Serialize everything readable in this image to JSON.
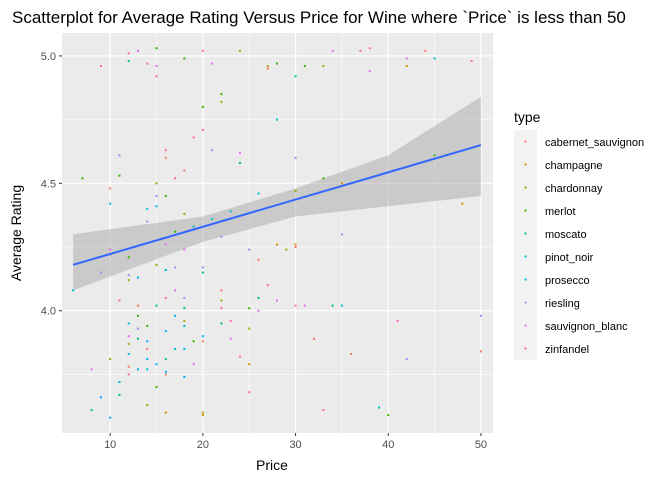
{
  "chart_data": {
    "type": "scatter",
    "title": "Scatterplot for Average Rating Versus Price for Wine where `Price` is less than 50",
    "xlabel": "Price",
    "ylabel": "Average Rating",
    "xlim": [
      4.8,
      51.3
    ],
    "ylim": [
      3.52,
      5.09
    ],
    "x_ticks": [
      10,
      20,
      30,
      40,
      50
    ],
    "y_ticks": [
      4.0,
      4.5,
      5.0
    ],
    "grid": true,
    "legend_title": "type",
    "legend_position": "right",
    "smooth": {
      "method": "linear",
      "start": {
        "x": 6,
        "y": 4.18
      },
      "end": {
        "x": 50,
        "y": 4.65
      },
      "band_lower": [
        [
          6,
          4.08
        ],
        [
          20,
          4.27
        ],
        [
          30,
          4.37
        ],
        [
          40,
          4.41
        ],
        [
          50,
          4.45
        ]
      ],
      "band_upper": [
        [
          6,
          4.3
        ],
        [
          20,
          4.37
        ],
        [
          30,
          4.48
        ],
        [
          40,
          4.61
        ],
        [
          50,
          4.84
        ]
      ]
    },
    "series": [
      {
        "name": "cabernet_sauvignon",
        "color": "#F8766D",
        "points": [
          [
            10,
            4.48
          ],
          [
            12,
            3.78
          ],
          [
            14,
            3.85
          ],
          [
            16,
            4.6
          ],
          [
            18,
            4.55
          ],
          [
            20,
            3.88
          ],
          [
            22,
            4.08
          ],
          [
            24,
            3.82
          ],
          [
            26,
            4.2
          ],
          [
            30,
            4.25
          ],
          [
            32,
            3.89
          ],
          [
            36,
            3.83
          ],
          [
            38,
            5.03
          ],
          [
            44,
            5.02
          ],
          [
            50,
            3.84
          ],
          [
            13,
            4.02
          ],
          [
            27,
            4.95
          ],
          [
            16,
            3.75
          ]
        ]
      },
      {
        "name": "champagne",
        "color": "#D89000",
        "points": [
          [
            25,
            3.79
          ],
          [
            28,
            4.26
          ],
          [
            30,
            4.26
          ],
          [
            35,
            4.5
          ],
          [
            42,
            4.96
          ],
          [
            48,
            4.42
          ],
          [
            20,
            3.59
          ],
          [
            16,
            3.6
          ]
        ]
      },
      {
        "name": "chardonnay",
        "color": "#A3A500",
        "points": [
          [
            10,
            3.81
          ],
          [
            12,
            4.12
          ],
          [
            14,
            3.63
          ],
          [
            15,
            4.5
          ],
          [
            18,
            3.96
          ],
          [
            20,
            3.6
          ],
          [
            22,
            4.04
          ],
          [
            25,
            3.93
          ],
          [
            27,
            4.96
          ],
          [
            29,
            4.24
          ],
          [
            30,
            4.47
          ],
          [
            33,
            4.96
          ],
          [
            18,
            4.38
          ],
          [
            24,
            5.02
          ],
          [
            15,
            4.18
          ],
          [
            12,
            3.87
          ],
          [
            22,
            4.82
          ]
        ]
      },
      {
        "name": "merlot",
        "color": "#39B600",
        "points": [
          [
            7,
            4.52
          ],
          [
            11,
            4.53
          ],
          [
            12,
            4.21
          ],
          [
            14,
            3.94
          ],
          [
            15,
            5.03
          ],
          [
            17,
            4.31
          ],
          [
            18,
            4.99
          ],
          [
            20,
            4.8
          ],
          [
            22,
            4.85
          ],
          [
            25,
            4.01
          ],
          [
            28,
            4.97
          ],
          [
            31,
            4.96
          ],
          [
            40,
            3.59
          ],
          [
            45,
            4.61
          ],
          [
            13,
            3.98
          ],
          [
            16,
            4.45
          ],
          [
            19,
            3.88
          ],
          [
            15,
            3.7
          ],
          [
            33,
            4.52
          ]
        ]
      },
      {
        "name": "moscato",
        "color": "#00BF7D",
        "points": [
          [
            8,
            3.61
          ],
          [
            11,
            3.67
          ],
          [
            13,
            3.89
          ],
          [
            15,
            4.02
          ],
          [
            16,
            3.81
          ],
          [
            18,
            4.01
          ],
          [
            20,
            4.15
          ],
          [
            22,
            3.95
          ],
          [
            24,
            4.58
          ],
          [
            26,
            4.05
          ],
          [
            30,
            4.92
          ],
          [
            34,
            4.02
          ],
          [
            16,
            4.16
          ],
          [
            12,
            4.98
          ]
        ]
      },
      {
        "name": "pinot_noir",
        "color": "#00BFC4",
        "points": [
          [
            6,
            4.08
          ],
          [
            10,
            4.42
          ],
          [
            12,
            3.95
          ],
          [
            14,
            3.77
          ],
          [
            16,
            4.16
          ],
          [
            18,
            3.94
          ],
          [
            19,
            4.33
          ],
          [
            21,
            4.36
          ],
          [
            23,
            4.39
          ],
          [
            26,
            4.46
          ],
          [
            35,
            4.02
          ],
          [
            45,
            4.99
          ],
          [
            39,
            3.62
          ],
          [
            28,
            4.75
          ],
          [
            17,
            3.85
          ],
          [
            14,
            4.4
          ]
        ]
      },
      {
        "name": "prosecco",
        "color": "#00B0F6",
        "points": [
          [
            9,
            3.66
          ],
          [
            11,
            3.72
          ],
          [
            13,
            3.77
          ],
          [
            14,
            3.81
          ],
          [
            15,
            3.79
          ],
          [
            16,
            3.76
          ],
          [
            17,
            3.98
          ],
          [
            18,
            3.85
          ],
          [
            20,
            3.9
          ],
          [
            12,
            3.83
          ],
          [
            10,
            3.58
          ],
          [
            14,
            3.88
          ],
          [
            16,
            3.92
          ],
          [
            13,
            4.13
          ],
          [
            15,
            4.41
          ],
          [
            18,
            3.74
          ]
        ]
      },
      {
        "name": "riesling",
        "color": "#9590FF",
        "points": [
          [
            9,
            4.15
          ],
          [
            10,
            4.22
          ],
          [
            12,
            4.14
          ],
          [
            13,
            3.93
          ],
          [
            15,
            4.45
          ],
          [
            17,
            4.17
          ],
          [
            20,
            4.17
          ],
          [
            22,
            4.29
          ],
          [
            25,
            4.24
          ],
          [
            30,
            4.6
          ],
          [
            35,
            4.3
          ],
          [
            42,
            3.81
          ],
          [
            50,
            3.98
          ],
          [
            18,
            4.05
          ],
          [
            14,
            4.35
          ],
          [
            21,
            4.63
          ],
          [
            11,
            4.61
          ]
        ]
      },
      {
        "name": "sauvignon_blanc",
        "color": "#E76BF3",
        "points": [
          [
            8,
            3.77
          ],
          [
            10,
            4.24
          ],
          [
            12,
            3.9
          ],
          [
            13,
            5.02
          ],
          [
            15,
            4.96
          ],
          [
            17,
            4.08
          ],
          [
            19,
            3.79
          ],
          [
            21,
            4.97
          ],
          [
            23,
            3.89
          ],
          [
            26,
            4.0
          ],
          [
            28,
            4.04
          ],
          [
            31,
            4.02
          ],
          [
            34,
            5.02
          ],
          [
            38,
            4.94
          ],
          [
            42,
            4.99
          ],
          [
            16,
            4.26
          ],
          [
            24,
            4.62
          ],
          [
            18,
            4.24
          ]
        ]
      },
      {
        "name": "zinfandel",
        "color": "#FF62BC",
        "points": [
          [
            9,
            4.96
          ],
          [
            11,
            4.04
          ],
          [
            12,
            5.01
          ],
          [
            14,
            4.97
          ],
          [
            15,
            4.92
          ],
          [
            16,
            4.63
          ],
          [
            17,
            4.52
          ],
          [
            19,
            4.68
          ],
          [
            20,
            5.02
          ],
          [
            22,
            4.01
          ],
          [
            23,
            3.96
          ],
          [
            25,
            3.68
          ],
          [
            27,
            4.1
          ],
          [
            30,
            4.02
          ],
          [
            33,
            3.61
          ],
          [
            37,
            5.02
          ],
          [
            41,
            3.96
          ],
          [
            49,
            4.98
          ],
          [
            12,
            3.75
          ],
          [
            16,
            4.05
          ],
          [
            20,
            4.71
          ]
        ]
      }
    ]
  }
}
